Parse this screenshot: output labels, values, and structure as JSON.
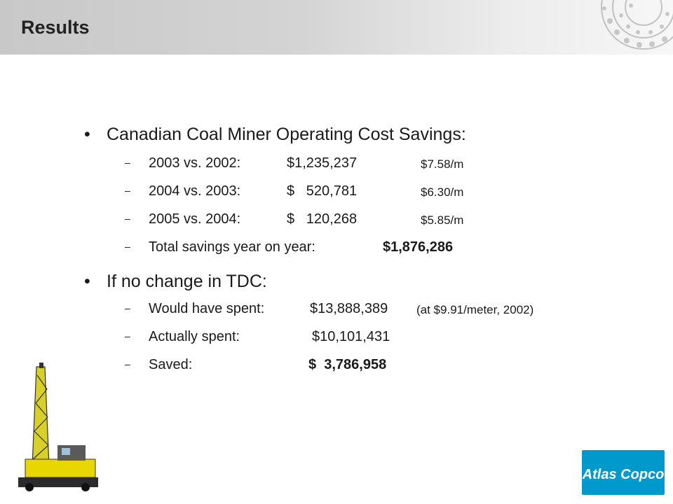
{
  "header": {
    "title": "Results"
  },
  "section1": {
    "bullet": "Canadian Coal Miner Operating Cost Savings:",
    "rows": [
      {
        "label": "2003 vs. 2002:",
        "amount": "$1,235,237",
        "rate": "$7.58/m"
      },
      {
        "label": "2004 vs. 2003:",
        "amount": "$   520,781",
        "rate": "$6.30/m"
      },
      {
        "label": "2005 vs. 2004:",
        "amount": "$   120,268",
        "rate": "$5.85/m"
      }
    ],
    "total_label": "Total savings year on year:",
    "total_value": "$1,876,286"
  },
  "section2": {
    "bullet": "If no change in TDC:",
    "would_label": "Would have spent:",
    "would_value": "$13,888,389",
    "would_note": "(at $9.91/meter, 2002)",
    "actual_label": "Actually spent:",
    "actual_value": "$10,101,431",
    "saved_label": "Saved:",
    "saved_value": "$  3,786,958"
  },
  "brand": {
    "logo_text": "Atlas Copco",
    "logo_color": "#0099cc",
    "rig_color": "#e8d600"
  },
  "bullet_glyph": "•",
  "dash_glyph": "–"
}
